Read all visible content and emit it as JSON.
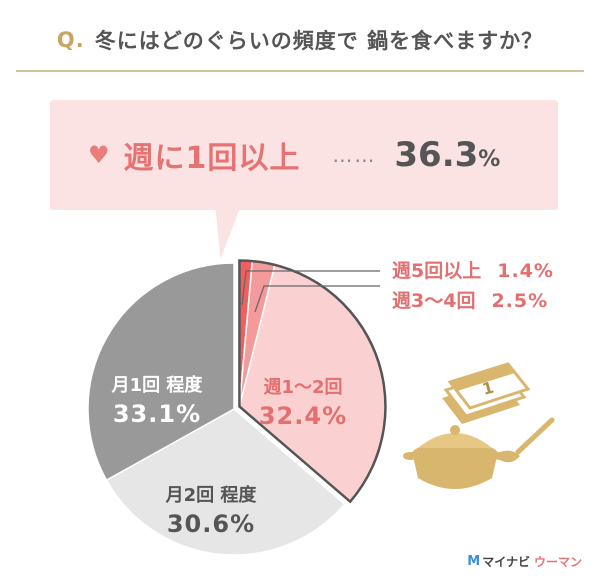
{
  "header": {
    "q_prefix": "Q.",
    "question": "冬にはどのぐらいの頻度で 鍋を食べますか？"
  },
  "highlight": {
    "icon": "heart-icon",
    "label": "週に1回以上",
    "dots": "……",
    "value": "36.3",
    "unit": "%"
  },
  "legend": [
    {
      "label": "週5回以上",
      "value": "1.4%"
    },
    {
      "label": "週3〜4回",
      "value": "2.5%"
    }
  ],
  "slice_labels": {
    "weekly_1_2": {
      "name": "週1〜2回",
      "value": "32.4%"
    },
    "monthly_1": {
      "name": "月1回 程度",
      "value": "33.1%"
    },
    "monthly_2": {
      "name": "月2回 程度",
      "value": "30.6%"
    }
  },
  "brand": {
    "mark": "M",
    "text_dark": "マイナビ",
    "text_pink": "ウーマン"
  },
  "colors": {
    "weekly_5_plus": "#ef5f5f",
    "weekly_3_4": "#f49a9a",
    "weekly_1_2": "#fbd0d0",
    "monthly_2": "#e6e6e6",
    "monthly_1": "#999999",
    "accent": "#e67373",
    "gold": "#c9a561"
  },
  "chart_data": {
    "type": "pie",
    "title": "冬にはどのぐらいの頻度で 鍋を食べますか？",
    "slices": [
      {
        "label": "週5回以上",
        "value": 1.4
      },
      {
        "label": "週3〜4回",
        "value": 2.5
      },
      {
        "label": "週1〜2回",
        "value": 32.4
      },
      {
        "label": "月2回 程度",
        "value": 30.6
      },
      {
        "label": "月1回 程度",
        "value": 33.1
      }
    ]
  }
}
